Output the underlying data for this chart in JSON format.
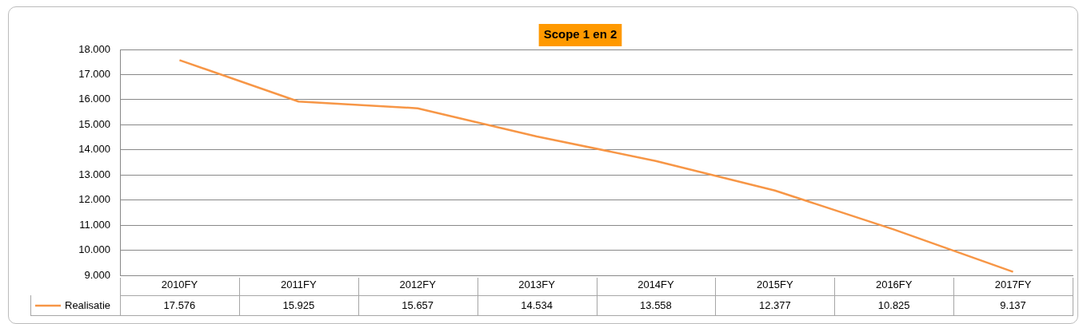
{
  "chart_data": {
    "type": "line",
    "title": "Scope 1 en 2",
    "categories": [
      "2010FY",
      "2011FY",
      "2012FY",
      "2013FY",
      "2014FY",
      "2015FY",
      "2016FY",
      "2017FY"
    ],
    "series": [
      {
        "name": "Realisatie",
        "color": "#f79646",
        "values": [
          17576,
          15925,
          15657,
          14534,
          13558,
          12377,
          10825,
          9137
        ],
        "value_labels": [
          "17.576",
          "15.925",
          "15.657",
          "14.534",
          "13.558",
          "12.377",
          "10.825",
          "9.137"
        ]
      }
    ],
    "ylim": [
      9000,
      18000
    ],
    "yticks": [
      {
        "value": 9000,
        "label": "9.000"
      },
      {
        "value": 10000,
        "label": "10.000"
      },
      {
        "value": 11000,
        "label": "11.000"
      },
      {
        "value": 12000,
        "label": "12.000"
      },
      {
        "value": 13000,
        "label": "13.000"
      },
      {
        "value": 14000,
        "label": "14.000"
      },
      {
        "value": 15000,
        "label": "15.000"
      },
      {
        "value": 16000,
        "label": "16.000"
      },
      {
        "value": 17000,
        "label": "17.000"
      },
      {
        "value": 18000,
        "label": "18.000"
      }
    ],
    "grid": "y",
    "legend": "bottom left",
    "marker": "none",
    "line_style": "solid"
  }
}
